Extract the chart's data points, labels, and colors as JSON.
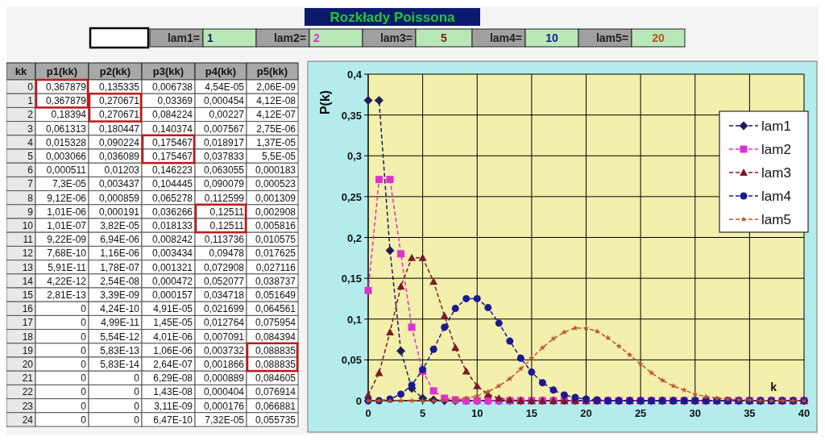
{
  "chart_data": [
    {
      "type": "line",
      "title": "Rozkłady Poissona",
      "xlabel": "k",
      "ylabel": "P(k)",
      "x": [
        0,
        1,
        2,
        3,
        4,
        5,
        6,
        7,
        8,
        9,
        10,
        11,
        12,
        13,
        14,
        15,
        16,
        17,
        18,
        19,
        20,
        21,
        22,
        23,
        24,
        25,
        26,
        27,
        28,
        29,
        30,
        31,
        32,
        33,
        34,
        35,
        36,
        37,
        38,
        39,
        40
      ],
      "xlim": [
        0,
        40
      ],
      "xticks": [
        0,
        5,
        10,
        15,
        20,
        25,
        30,
        35,
        40
      ],
      "ylim": [
        0,
        0.4
      ],
      "yticks": [
        0,
        {
          "value": 0.05,
          "label": "0,05"
        },
        {
          "value": 0.1,
          "label": "0,1"
        },
        {
          "value": 0.15,
          "label": "0,15"
        },
        {
          "value": 0.2,
          "label": "0,2"
        },
        {
          "value": 0.25,
          "label": "0,25"
        },
        {
          "value": 0.3,
          "label": "0,3"
        },
        {
          "value": 0.35,
          "label": "0,35"
        },
        {
          "value": 0.4,
          "label": "0,4"
        }
      ],
      "grid": true,
      "legend": "top right",
      "line_style": "dashed",
      "series": [
        {
          "name": "lam1",
          "color": "#1c1c5c",
          "marker": "diamond",
          "values": [
            0.368,
            0.368,
            0.184,
            0.061,
            0.015,
            0.003,
            0.001,
            0,
            0,
            0,
            0,
            0,
            0,
            0,
            0,
            0,
            0,
            0,
            0,
            0,
            0,
            0,
            0,
            0,
            0,
            0,
            0,
            0,
            0,
            0,
            0,
            0,
            0,
            0,
            0,
            0,
            0,
            0,
            0,
            0,
            0
          ]
        },
        {
          "name": "lam2",
          "color": "#e030d0",
          "marker": "square",
          "values": [
            0.135,
            0.271,
            0.271,
            0.18,
            0.09,
            0.036,
            0.012,
            0.003,
            0.001,
            0,
            0,
            0,
            0,
            0,
            0,
            0,
            0,
            0,
            0,
            0,
            0,
            0,
            0,
            0,
            0,
            0,
            0,
            0,
            0,
            0,
            0,
            0,
            0,
            0,
            0,
            0,
            0,
            0,
            0,
            0,
            0
          ]
        },
        {
          "name": "lam3",
          "color": "#7a1a2a",
          "marker": "triangle",
          "values": [
            0.007,
            0.034,
            0.084,
            0.14,
            0.175,
            0.175,
            0.146,
            0.104,
            0.065,
            0.036,
            0.018,
            0.008,
            0.003,
            0.001,
            0,
            0,
            0,
            0,
            0,
            0,
            0,
            0,
            0,
            0,
            0,
            0,
            0,
            0,
            0,
            0,
            0,
            0,
            0,
            0,
            0,
            0,
            0,
            0,
            0,
            0,
            0
          ]
        },
        {
          "name": "lam4",
          "color": "#1a1a90",
          "marker": "circle",
          "values": [
            0,
            0,
            0.002,
            0.008,
            0.019,
            0.038,
            0.063,
            0.09,
            0.113,
            0.125,
            0.125,
            0.114,
            0.095,
            0.073,
            0.052,
            0.035,
            0.022,
            0.013,
            0.007,
            0.004,
            0.002,
            0.001,
            0,
            0,
            0,
            0,
            0,
            0,
            0,
            0,
            0,
            0,
            0,
            0,
            0,
            0,
            0,
            0,
            0,
            0,
            0
          ]
        },
        {
          "name": "lam5",
          "color": "#b8542a",
          "marker": "star",
          "values": [
            0,
            0,
            0,
            0,
            0,
            0,
            0,
            0.001,
            0.001,
            0.003,
            0.006,
            0.011,
            0.018,
            0.027,
            0.039,
            0.052,
            0.065,
            0.076,
            0.084,
            0.089,
            0.089,
            0.085,
            0.077,
            0.067,
            0.056,
            0.045,
            0.034,
            0.025,
            0.018,
            0.013,
            0.008,
            0.005,
            0.003,
            0.002,
            0.001,
            0.001,
            0,
            0,
            0,
            0,
            0
          ]
        }
      ]
    },
    {
      "type": "other",
      "annotations": [
        "lam1=",
        "1",
        "lam2=",
        "2",
        "lam3=",
        "5",
        "lam4=",
        "10",
        "lam5=",
        "20",
        "kk",
        "p1(kk)",
        "p2(kk)",
        "p3(kk)",
        "p4(kk)",
        "p5(kk)",
        "0",
        "0,367879",
        "0,135335",
        "0,006738",
        "4,54E-05",
        "2,06E-09",
        "1",
        "0,367879",
        "0,270671",
        "0,03369",
        "0,000454",
        "4,12E-08",
        "2",
        "0,18394",
        "0,270671",
        "0,084224",
        "0,00227",
        "4,12E-07",
        "3",
        "0,061313",
        "0,180447",
        "0,140374",
        "0,007567",
        "2,75E-06",
        "4",
        "0,015328",
        "0,090224",
        "0,175467",
        "0,018917",
        "1,37E-05",
        "5",
        "0,003066",
        "0,036089",
        "0,175467",
        "0,037833",
        "5,5E-05",
        "6",
        "0,000511",
        "0,01203",
        "0,146223",
        "0,063055",
        "0,000183",
        "7",
        "7,3E-05",
        "0,003437",
        "0,104445",
        "0,090079",
        "0,000523",
        "8",
        "9,12E-06",
        "0,000859",
        "0,065278",
        "0,112599",
        "0,001309",
        "9",
        "1,01E-06",
        "0,000191",
        "0,036266",
        "0,12511",
        "0,002908",
        "10",
        "1,01E-07",
        "3,82E-05",
        "0,018133",
        "0,12511",
        "0,005816",
        "11",
        "9,22E-09",
        "6,94E-06",
        "0,008242",
        "0,113736",
        "0,010575",
        "12",
        "7,68E-10",
        "1,16E-06",
        "0,003434",
        "0,09478",
        "0,017625",
        "13",
        "5,91E-11",
        "1,78E-07",
        "0,001321",
        "0,072908",
        "0,027116",
        "14",
        "4,22E-12",
        "2,54E-08",
        "0,000472",
        "0,052077",
        "0,038737",
        "15",
        "2,81E-13",
        "3,39E-09",
        "0,000157",
        "0,034718",
        "0,051649",
        "16",
        "0",
        "4,24E-10",
        "4,91E-05",
        "0,021699",
        "0,064561",
        "17",
        "0",
        "4,99E-11",
        "1,45E-05",
        "0,012764",
        "0,075954",
        "18",
        "0",
        "5,54E-12",
        "4,01E-06",
        "0,007091",
        "0,084394",
        "19",
        "0",
        "5,83E-13",
        "1,06E-06",
        "0,003732",
        "0,088835",
        "20",
        "0",
        "5,83E-14",
        "2,64E-07",
        "0,001866",
        "0,088835",
        "21",
        "0",
        "0",
        "6,29E-08",
        "0,000889",
        "0,084605",
        "22",
        "0",
        "0",
        "1,43E-08",
        "0,000404",
        "0,076914",
        "23",
        "0",
        "0",
        "3,11E-09",
        "0,000176",
        "0,066881",
        "24",
        "0",
        "0",
        "6,47E-10",
        "7,32E-05",
        "0,055735"
      ]
    }
  ]
}
